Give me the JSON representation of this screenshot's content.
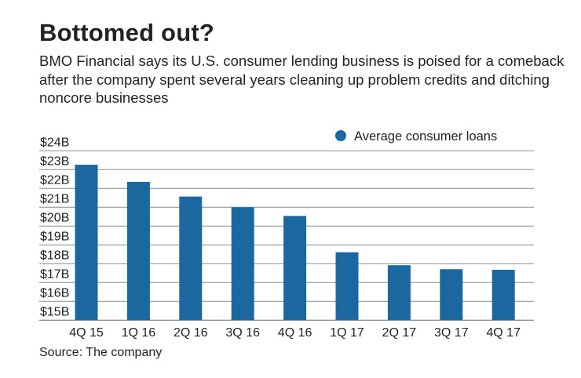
{
  "title": "Bottomed out?",
  "subtitle": "BMO Financial says its U.S. consumer lending business is poised for a comeback after the company spent several years cleaning up problem credits and ditching noncore businesses",
  "source": "Source: The company",
  "chart_data": {
    "type": "bar",
    "categories": [
      "4Q 15",
      "1Q 16",
      "2Q 16",
      "3Q 16",
      "4Q 16",
      "1Q 17",
      "2Q 17",
      "3Q 17",
      "4Q 17"
    ],
    "series": [
      {
        "name": "Average consumer loans",
        "color": "#1b67a0",
        "values": [
          23.26,
          22.35,
          21.57,
          21.0,
          20.54,
          18.61,
          17.92,
          17.71,
          17.68
        ]
      }
    ],
    "ylim": [
      15,
      24
    ],
    "yticks": [
      15,
      16,
      17,
      18,
      19,
      20,
      21,
      22,
      23,
      24
    ],
    "ytick_labels": [
      "$15B",
      "$16B",
      "$17B",
      "$18B",
      "$19B",
      "$20B",
      "$21B",
      "$22B",
      "$23B",
      "$24B"
    ],
    "grid": true,
    "legend": "top-right",
    "title": "",
    "xlabel": "",
    "ylabel": ""
  }
}
